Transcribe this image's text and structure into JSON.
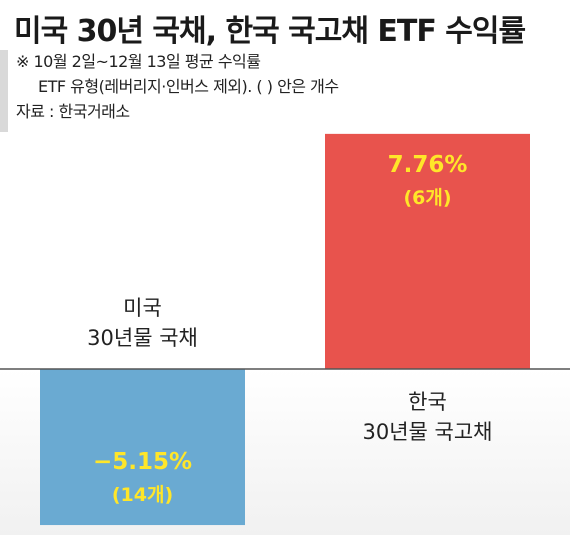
{
  "title": "미국 30년 국채, 한국 국고채 ETF 수익률",
  "notes": [
    "※ 10월 2일~12월 13일 평균 수익률",
    "ETF 유형(레버리지·인버스 제외). (    ) 안은 개수",
    "자료 : 한국거래소"
  ],
  "chart_data": {
    "type": "bar",
    "title": "미국 30년 국채, 한국 국고채 ETF 수익률",
    "categories": [
      "미국 30년물 국채",
      "한국 30년물 국고채"
    ],
    "category_lines": [
      [
        "미국",
        "30년물 국채"
      ],
      [
        "한국",
        "30년물 국고채"
      ]
    ],
    "values": [
      -5.15,
      7.76
    ],
    "value_labels": [
      "−5.15%",
      "7.76%"
    ],
    "counts": [
      "(14개)",
      "(6개)"
    ],
    "colors": [
      "#6aaad2",
      "#e8534d"
    ],
    "value_label_color": "#ffe629",
    "baseline_color": "#555555",
    "unit": "%",
    "grid": false,
    "legend": "none"
  }
}
